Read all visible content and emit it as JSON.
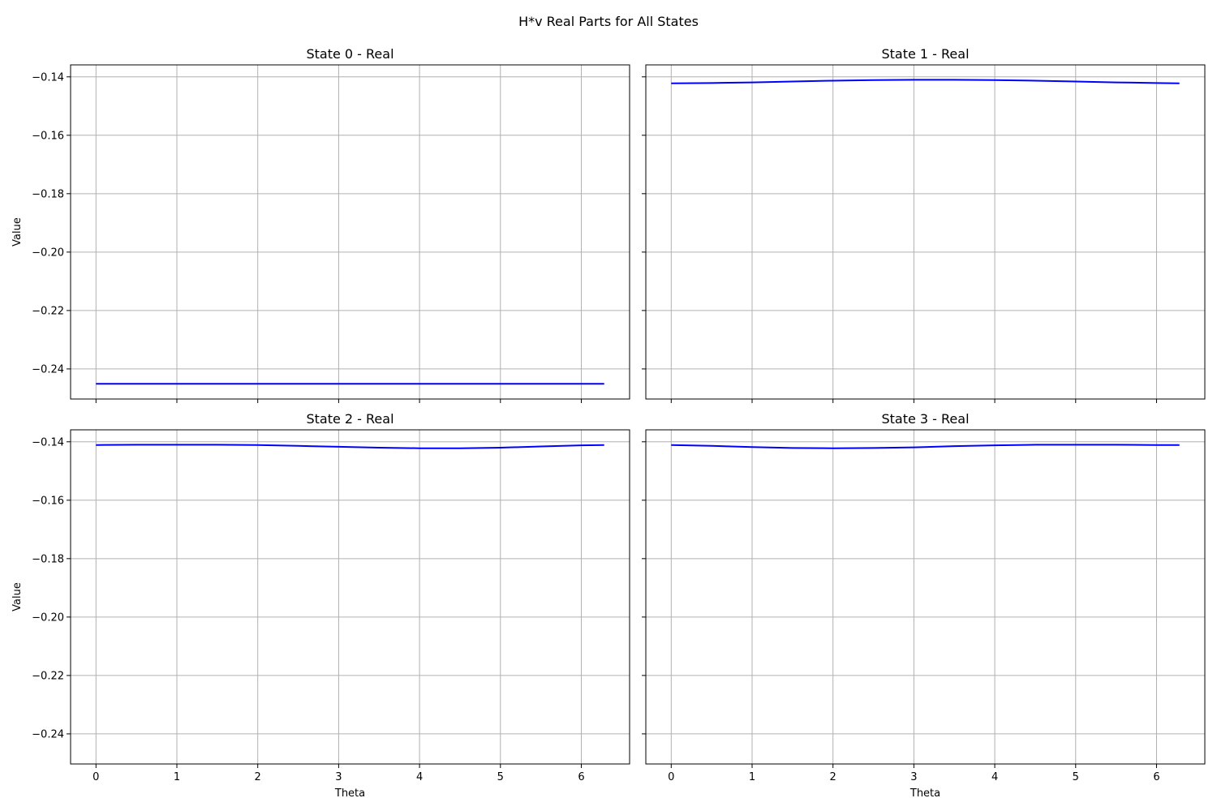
{
  "figure": {
    "title": "H*v Real Parts for All States"
  },
  "style": {
    "line_color": "#0000ff",
    "grid_color": "#b0b0b0",
    "axes_color": "#000000"
  },
  "chart_data": [
    {
      "type": "line",
      "title": "State 0 - Real",
      "xlabel": "",
      "ylabel": "Value",
      "xlim": [
        -0.314,
        6.597
      ],
      "ylim": [
        -0.2503,
        -0.1359
      ],
      "xticks": [
        0,
        1,
        2,
        3,
        4,
        5,
        6
      ],
      "yticks": [
        -0.24,
        -0.22,
        -0.2,
        -0.18,
        -0.16,
        -0.14
      ],
      "show_xtick_labels": false,
      "show_ytick_labels": true,
      "grid": true,
      "series": [
        {
          "x": [
            0,
            0.5,
            1,
            1.5,
            2,
            2.5,
            3,
            3.5,
            4,
            4.5,
            5,
            5.5,
            6,
            6.283
          ],
          "y": [
            -0.2451,
            -0.2451,
            -0.2451,
            -0.2451,
            -0.2451,
            -0.2451,
            -0.2451,
            -0.2451,
            -0.2451,
            -0.2451,
            -0.2451,
            -0.2451,
            -0.2451,
            -0.2451
          ]
        }
      ]
    },
    {
      "type": "line",
      "title": "State 1 - Real",
      "xlabel": "",
      "ylabel": "",
      "xlim": [
        -0.314,
        6.597
      ],
      "ylim": [
        -0.2503,
        -0.1359
      ],
      "xticks": [
        0,
        1,
        2,
        3,
        4,
        5,
        6
      ],
      "yticks": [
        -0.24,
        -0.22,
        -0.2,
        -0.18,
        -0.16,
        -0.14
      ],
      "show_xtick_labels": false,
      "show_ytick_labels": false,
      "grid": true,
      "series": [
        {
          "x": [
            0,
            0.5,
            1,
            1.5,
            2,
            2.5,
            3,
            3.5,
            4,
            4.5,
            5,
            5.5,
            6,
            6.283
          ],
          "y": [
            -0.1422,
            -0.1421,
            -0.1419,
            -0.1416,
            -0.1413,
            -0.1411,
            -0.141,
            -0.141,
            -0.1411,
            -0.1413,
            -0.1416,
            -0.1419,
            -0.1421,
            -0.1422
          ]
        }
      ]
    },
    {
      "type": "line",
      "title": "State 2 - Real",
      "xlabel": "Theta",
      "ylabel": "Value",
      "xlim": [
        -0.314,
        6.597
      ],
      "ylim": [
        -0.2503,
        -0.1359
      ],
      "xticks": [
        0,
        1,
        2,
        3,
        4,
        5,
        6
      ],
      "yticks": [
        -0.24,
        -0.22,
        -0.2,
        -0.18,
        -0.16,
        -0.14
      ],
      "show_xtick_labels": true,
      "show_ytick_labels": true,
      "grid": true,
      "series": [
        {
          "x": [
            0,
            0.5,
            1,
            1.5,
            2,
            2.5,
            3,
            3.5,
            4,
            4.5,
            5,
            5.5,
            6,
            6.283
          ],
          "y": [
            -0.1411,
            -0.141,
            -0.141,
            -0.141,
            -0.1411,
            -0.1414,
            -0.1417,
            -0.142,
            -0.1422,
            -0.1422,
            -0.142,
            -0.1416,
            -0.1412,
            -0.1411
          ]
        }
      ]
    },
    {
      "type": "line",
      "title": "State 3 - Real",
      "xlabel": "Theta",
      "ylabel": "",
      "xlim": [
        -0.314,
        6.597
      ],
      "ylim": [
        -0.2503,
        -0.1359
      ],
      "xticks": [
        0,
        1,
        2,
        3,
        4,
        5,
        6
      ],
      "yticks": [
        -0.24,
        -0.22,
        -0.2,
        -0.18,
        -0.16,
        -0.14
      ],
      "show_xtick_labels": true,
      "show_ytick_labels": false,
      "grid": true,
      "series": [
        {
          "x": [
            0,
            0.5,
            1,
            1.5,
            2,
            2.5,
            3,
            3.5,
            4,
            4.5,
            5,
            5.5,
            6,
            6.283
          ],
          "y": [
            -0.1411,
            -0.1414,
            -0.1418,
            -0.1421,
            -0.1422,
            -0.1421,
            -0.1419,
            -0.1415,
            -0.1412,
            -0.141,
            -0.141,
            -0.141,
            -0.1411,
            -0.1411
          ]
        }
      ]
    }
  ]
}
